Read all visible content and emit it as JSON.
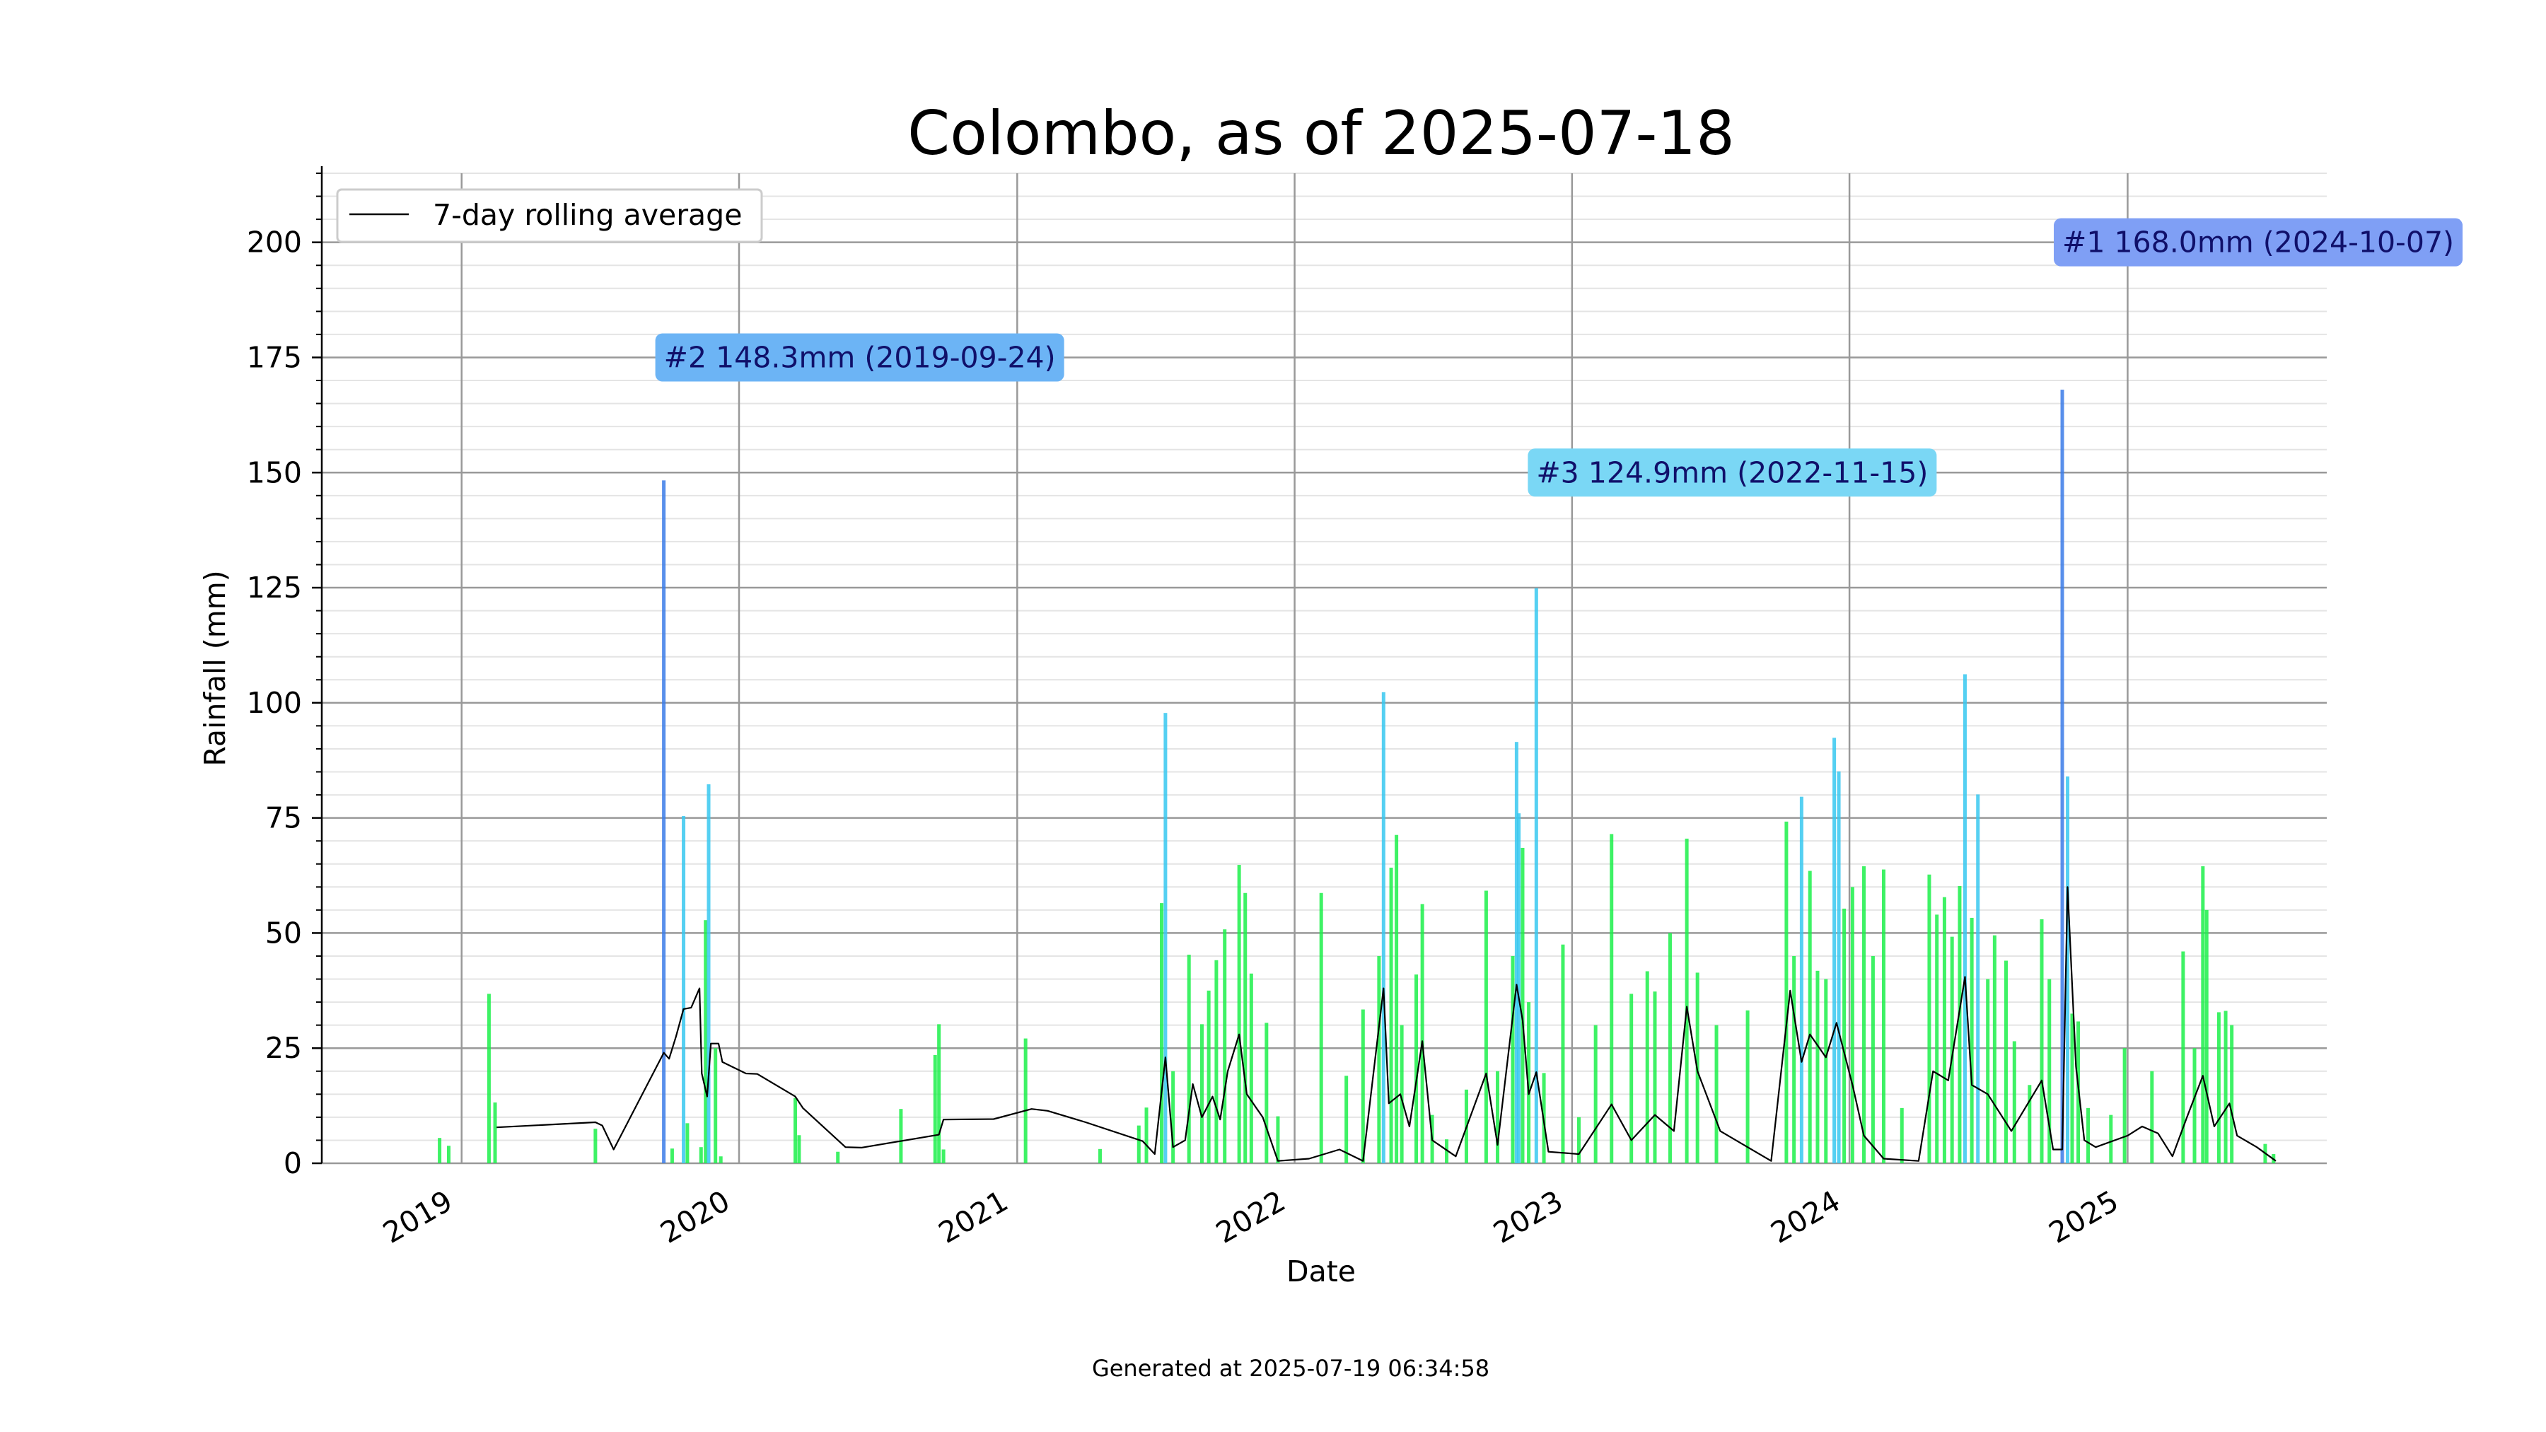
{
  "footer": "Generated at 2025-07-19 06:34:58",
  "colors": {
    "grid_major": "#999999",
    "grid_minor": "#e4e4e4",
    "rolling_line": "#000000",
    "bar_high": "#3b7be8",
    "bar_mid": "#37c8f0",
    "bar_low": "#1cf04a",
    "annotation_1": "#7f9ff5",
    "annotation_2": "#6cb4f5",
    "annotation_3": "#7ad7f5"
  },
  "chart_data": {
    "type": "bar",
    "title": "Colombo, as of 2025-07-18",
    "xlabel": "Date",
    "ylabel": "Rainfall (mm)",
    "xlim": [
      "2018-07-01",
      "2025-09-20"
    ],
    "ylim": [
      0,
      215
    ],
    "x_ticks": [
      "2019",
      "2020",
      "2021",
      "2022",
      "2023",
      "2024",
      "2025"
    ],
    "y_ticks": [
      0,
      25,
      50,
      75,
      100,
      125,
      150,
      175,
      200
    ],
    "grid": true,
    "legend": {
      "position": "top-left",
      "entries": [
        "7-day rolling average"
      ]
    },
    "series": [
      {
        "kind": "bar",
        "points": [
          [
            "2018-12-03",
            5.5
          ],
          [
            "2018-12-15",
            3.8
          ],
          [
            "2019-02-06",
            36.8
          ],
          [
            "2019-02-14",
            13.2
          ],
          [
            "2019-06-26",
            7.5
          ],
          [
            "2019-09-24",
            148.3
          ],
          [
            "2019-10-05",
            3.2
          ],
          [
            "2019-10-20",
            75.4
          ],
          [
            "2019-10-25",
            8.7
          ],
          [
            "2019-11-12",
            3.5
          ],
          [
            "2019-11-18",
            52.8
          ],
          [
            "2019-11-22",
            82.3
          ],
          [
            "2019-12-01",
            25.0
          ],
          [
            "2019-12-08",
            1.5
          ],
          [
            "2020-03-15",
            14.2
          ],
          [
            "2020-03-20",
            6.1
          ],
          [
            "2020-05-10",
            2.5
          ],
          [
            "2020-08-01",
            11.8
          ],
          [
            "2020-09-15",
            23.5
          ],
          [
            "2020-09-20",
            30.2
          ],
          [
            "2020-09-26",
            3.0
          ],
          [
            "2021-01-12",
            27.1
          ],
          [
            "2021-04-20",
            3.1
          ],
          [
            "2021-06-10",
            8.2
          ],
          [
            "2021-06-20",
            12.1
          ],
          [
            "2021-07-10",
            56.5
          ],
          [
            "2021-07-15",
            97.8
          ],
          [
            "2021-07-25",
            20.0
          ],
          [
            "2021-08-15",
            45.3
          ],
          [
            "2021-09-01",
            30.2
          ],
          [
            "2021-09-10",
            37.5
          ],
          [
            "2021-09-20",
            44.1
          ],
          [
            "2021-10-01",
            50.8
          ],
          [
            "2021-10-20",
            64.8
          ],
          [
            "2021-10-28",
            58.7
          ],
          [
            "2021-11-05",
            41.2
          ],
          [
            "2021-11-25",
            30.5
          ],
          [
            "2021-12-10",
            10.2
          ],
          [
            "2022-02-05",
            58.7
          ],
          [
            "2022-03-10",
            19.0
          ],
          [
            "2022-04-01",
            33.4
          ],
          [
            "2022-04-22",
            45.0
          ],
          [
            "2022-04-28",
            102.3
          ],
          [
            "2022-05-08",
            64.2
          ],
          [
            "2022-05-15",
            71.3
          ],
          [
            "2022-05-22",
            30.0
          ],
          [
            "2022-06-10",
            41.0
          ],
          [
            "2022-06-18",
            56.3
          ],
          [
            "2022-07-01",
            10.5
          ],
          [
            "2022-07-20",
            5.2
          ],
          [
            "2022-08-15",
            16.0
          ],
          [
            "2022-09-10",
            59.2
          ],
          [
            "2022-09-25",
            20.0
          ],
          [
            "2022-10-15",
            45.0
          ],
          [
            "2022-10-20",
            91.5
          ],
          [
            "2022-10-23",
            76.0
          ],
          [
            "2022-10-28",
            68.5
          ],
          [
            "2022-11-05",
            35.0
          ],
          [
            "2022-11-15",
            124.9
          ],
          [
            "2022-11-25",
            19.6
          ],
          [
            "2022-12-20",
            47.5
          ],
          [
            "2023-01-10",
            10.0
          ],
          [
            "2023-02-01",
            30.0
          ],
          [
            "2023-02-22",
            71.5
          ],
          [
            "2023-03-20",
            36.8
          ],
          [
            "2023-04-10",
            41.7
          ],
          [
            "2023-04-20",
            37.3
          ],
          [
            "2023-05-10",
            50.0
          ],
          [
            "2023-06-01",
            70.5
          ],
          [
            "2023-06-15",
            41.4
          ],
          [
            "2023-07-10",
            30.0
          ],
          [
            "2023-08-20",
            33.2
          ],
          [
            "2023-10-10",
            74.2
          ],
          [
            "2023-10-20",
            45.0
          ],
          [
            "2023-10-30",
            79.6
          ],
          [
            "2023-11-10",
            63.5
          ],
          [
            "2023-11-20",
            41.8
          ],
          [
            "2023-12-01",
            40.0
          ],
          [
            "2023-12-12",
            92.4
          ],
          [
            "2023-12-18",
            85.1
          ],
          [
            "2023-12-25",
            55.3
          ],
          [
            "2024-01-05",
            60.0
          ],
          [
            "2024-01-20",
            64.5
          ],
          [
            "2024-02-01",
            45.0
          ],
          [
            "2024-02-15",
            63.8
          ],
          [
            "2024-03-10",
            12.0
          ],
          [
            "2024-04-15",
            62.7
          ],
          [
            "2024-04-25",
            54.0
          ],
          [
            "2024-05-05",
            57.8
          ],
          [
            "2024-05-15",
            49.2
          ],
          [
            "2024-05-25",
            60.2
          ],
          [
            "2024-06-01",
            106.2
          ],
          [
            "2024-06-10",
            53.3
          ],
          [
            "2024-06-18",
            80.1
          ],
          [
            "2024-07-01",
            40.0
          ],
          [
            "2024-07-10",
            49.5
          ],
          [
            "2024-07-25",
            44.0
          ],
          [
            "2024-08-05",
            26.5
          ],
          [
            "2024-08-25",
            17.0
          ],
          [
            "2024-09-10",
            53.0
          ],
          [
            "2024-09-20",
            40.0
          ],
          [
            "2024-10-07",
            168.0
          ],
          [
            "2024-10-14",
            84.0
          ],
          [
            "2024-10-20",
            32.5
          ],
          [
            "2024-10-28",
            30.8
          ],
          [
            "2024-11-10",
            12.0
          ],
          [
            "2024-12-10",
            10.5
          ],
          [
            "2024-12-28",
            25.0
          ],
          [
            "2025-02-02",
            20.0
          ],
          [
            "2025-03-15",
            46.0
          ],
          [
            "2025-03-30",
            25.0
          ],
          [
            "2025-04-10",
            64.5
          ],
          [
            "2025-04-15",
            55.0
          ],
          [
            "2025-05-01",
            32.8
          ],
          [
            "2025-05-10",
            33.1
          ],
          [
            "2025-05-18",
            30.0
          ],
          [
            "2025-07-01",
            4.2
          ],
          [
            "2025-07-12",
            2.0
          ]
        ]
      },
      {
        "kind": "line",
        "name": "7-day rolling average",
        "points": [
          [
            "2019-02-16",
            7.8
          ],
          [
            "2019-06-26",
            8.9
          ],
          [
            "2019-07-05",
            8.2
          ],
          [
            "2019-07-20",
            3.0
          ],
          [
            "2019-09-24",
            24.0
          ],
          [
            "2019-10-01",
            22.7
          ],
          [
            "2019-10-10",
            27.5
          ],
          [
            "2019-10-20",
            33.5
          ],
          [
            "2019-10-30",
            33.8
          ],
          [
            "2019-11-10",
            38.0
          ],
          [
            "2019-11-13",
            19.5
          ],
          [
            "2019-11-20",
            14.5
          ],
          [
            "2019-11-25",
            26.0
          ],
          [
            "2019-12-05",
            26.0
          ],
          [
            "2019-12-10",
            22.0
          ],
          [
            "2020-01-10",
            19.5
          ],
          [
            "2020-01-25",
            19.4
          ],
          [
            "2020-03-15",
            14.5
          ],
          [
            "2020-03-25",
            12.0
          ],
          [
            "2020-05-20",
            3.5
          ],
          [
            "2020-06-10",
            3.4
          ],
          [
            "2020-09-20",
            6.2
          ],
          [
            "2020-09-26",
            9.5
          ],
          [
            "2020-12-01",
            9.6
          ],
          [
            "2021-01-20",
            11.8
          ],
          [
            "2021-02-10",
            11.4
          ],
          [
            "2021-04-01",
            8.9
          ],
          [
            "2021-06-15",
            4.8
          ],
          [
            "2021-07-01",
            2.0
          ],
          [
            "2021-07-15",
            23.0
          ],
          [
            "2021-07-25",
            3.5
          ],
          [
            "2021-08-10",
            5.0
          ],
          [
            "2021-08-20",
            17.2
          ],
          [
            "2021-09-01",
            10.0
          ],
          [
            "2021-09-15",
            14.5
          ],
          [
            "2021-09-25",
            9.5
          ],
          [
            "2021-10-05",
            20.0
          ],
          [
            "2021-10-20",
            28.0
          ],
          [
            "2021-10-30",
            15.0
          ],
          [
            "2021-11-20",
            10.0
          ],
          [
            "2021-12-10",
            0.5
          ],
          [
            "2022-01-20",
            1.0
          ],
          [
            "2022-03-01",
            3.0
          ],
          [
            "2022-04-01",
            0.5
          ],
          [
            "2022-04-28",
            38.0
          ],
          [
            "2022-05-05",
            13.0
          ],
          [
            "2022-05-20",
            15.0
          ],
          [
            "2022-06-01",
            8.0
          ],
          [
            "2022-06-18",
            26.5
          ],
          [
            "2022-07-01",
            5.0
          ],
          [
            "2022-08-01",
            1.5
          ],
          [
            "2022-09-10",
            19.5
          ],
          [
            "2022-09-25",
            4.0
          ],
          [
            "2022-10-20",
            38.8
          ],
          [
            "2022-10-28",
            31.0
          ],
          [
            "2022-11-05",
            15.0
          ],
          [
            "2022-11-15",
            19.8
          ],
          [
            "2022-12-01",
            2.5
          ],
          [
            "2023-01-10",
            2.0
          ],
          [
            "2023-02-22",
            12.8
          ],
          [
            "2023-03-20",
            5.0
          ],
          [
            "2023-04-20",
            10.5
          ],
          [
            "2023-05-15",
            7.0
          ],
          [
            "2023-06-01",
            34.0
          ],
          [
            "2023-06-15",
            20.0
          ],
          [
            "2023-07-15",
            7.0
          ],
          [
            "2023-08-20",
            3.5
          ],
          [
            "2023-09-20",
            0.5
          ],
          [
            "2023-10-15",
            37.5
          ],
          [
            "2023-10-30",
            22.0
          ],
          [
            "2023-11-10",
            28.0
          ],
          [
            "2023-12-01",
            23.0
          ],
          [
            "2023-12-15",
            30.5
          ],
          [
            "2024-01-05",
            17.0
          ],
          [
            "2024-01-20",
            6.0
          ],
          [
            "2024-02-15",
            1.0
          ],
          [
            "2024-04-01",
            0.5
          ],
          [
            "2024-04-20",
            20.0
          ],
          [
            "2024-05-10",
            18.0
          ],
          [
            "2024-06-01",
            40.5
          ],
          [
            "2024-06-10",
            17.0
          ],
          [
            "2024-07-01",
            15.0
          ],
          [
            "2024-08-01",
            7.0
          ],
          [
            "2024-09-10",
            18.0
          ],
          [
            "2024-09-25",
            3.0
          ],
          [
            "2024-10-07",
            3.0
          ],
          [
            "2024-10-14",
            60.0
          ],
          [
            "2024-10-25",
            21.0
          ],
          [
            "2024-11-05",
            5.0
          ],
          [
            "2024-11-20",
            3.5
          ],
          [
            "2025-01-01",
            6.0
          ],
          [
            "2025-01-20",
            8.0
          ],
          [
            "2025-02-10",
            6.5
          ],
          [
            "2025-03-01",
            1.5
          ],
          [
            "2025-03-20",
            10.0
          ],
          [
            "2025-04-10",
            19.0
          ],
          [
            "2025-04-25",
            8.0
          ],
          [
            "2025-05-15",
            13.0
          ],
          [
            "2025-05-25",
            6.0
          ],
          [
            "2025-06-20",
            3.5
          ],
          [
            "2025-07-15",
            0.5
          ]
        ]
      }
    ],
    "annotations": [
      {
        "text": "#1 168.0mm (2024-10-07)",
        "date": "2024-10-07",
        "value": 200,
        "color_key": "annotation_1"
      },
      {
        "text": "#2 148.3mm (2019-09-24)",
        "date": "2019-09-24",
        "value": 175,
        "color_key": "annotation_2"
      },
      {
        "text": "#3 124.9mm (2022-11-15)",
        "date": "2022-11-15",
        "value": 150,
        "color_key": "annotation_3"
      }
    ]
  }
}
